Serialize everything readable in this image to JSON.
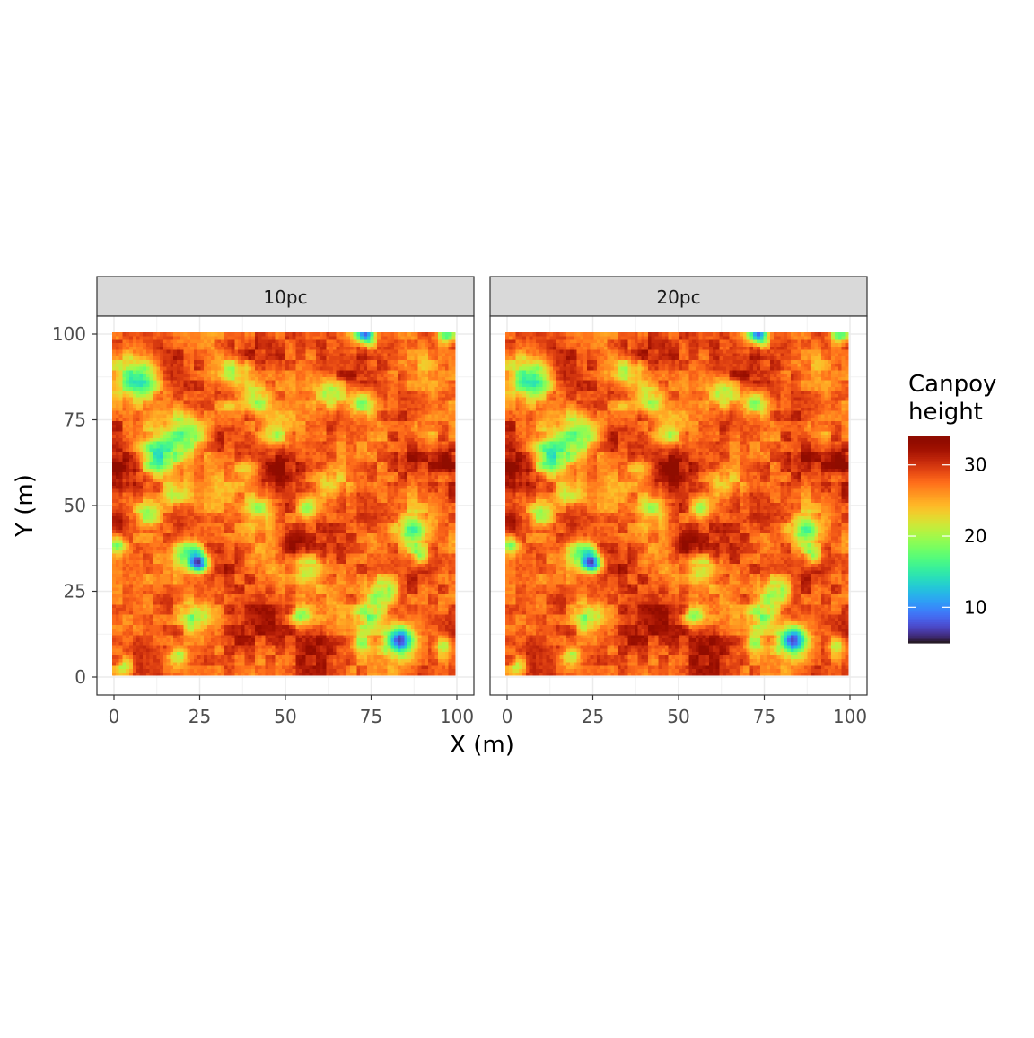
{
  "chart_data": {
    "type": "heatmap",
    "facets": [
      "10pc",
      "20pc"
    ],
    "xlabel": "X (m)",
    "ylabel": "Y (m)",
    "xlim": [
      0,
      100
    ],
    "ylim": [
      0,
      100
    ],
    "x_ticks": [
      0,
      25,
      50,
      75,
      100
    ],
    "y_ticks": [
      0,
      25,
      50,
      75,
      100
    ],
    "x_tick_labels": [
      "0",
      "25",
      "50",
      "75",
      "100"
    ],
    "y_tick_labels": [
      "0",
      "25",
      "50",
      "75",
      "100"
    ],
    "grid": true,
    "legend": {
      "title_line1": "Canpoy",
      "title_line2": "height",
      "position": "right",
      "range": [
        5,
        34
      ],
      "breaks": [
        10,
        20,
        30
      ],
      "break_labels": [
        "10",
        "20",
        "30"
      ],
      "colormap": "turbo"
    },
    "surface": {
      "baseline_height": 28,
      "gaps": [
        {
          "x": 8,
          "y": 87,
          "r": 4,
          "depth": 13
        },
        {
          "x": 22,
          "y": 71,
          "r": 4,
          "depth": 9
        },
        {
          "x": 13,
          "y": 64,
          "r": 4,
          "depth": 12
        },
        {
          "x": 10,
          "y": 47,
          "r": 3,
          "depth": 10
        },
        {
          "x": 18,
          "y": 53,
          "r": 3,
          "depth": 8
        },
        {
          "x": 25,
          "y": 33,
          "r": 2,
          "depth": 20
        },
        {
          "x": 22,
          "y": 36,
          "r": 3,
          "depth": 10
        },
        {
          "x": 24,
          "y": 17,
          "r": 3,
          "depth": 9
        },
        {
          "x": 19,
          "y": 5,
          "r": 2,
          "depth": 9
        },
        {
          "x": 43,
          "y": 49,
          "r": 3,
          "depth": 8
        },
        {
          "x": 40,
          "y": 60,
          "r": 3,
          "depth": 7
        },
        {
          "x": 47,
          "y": 70,
          "r": 3,
          "depth": 7
        },
        {
          "x": 42,
          "y": 81,
          "r": 3,
          "depth": 8
        },
        {
          "x": 36,
          "y": 89,
          "r": 3,
          "depth": 7
        },
        {
          "x": 64,
          "y": 83,
          "r": 3,
          "depth": 8
        },
        {
          "x": 73,
          "y": 80,
          "r": 3,
          "depth": 9
        },
        {
          "x": 57,
          "y": 49,
          "r": 2,
          "depth": 9
        },
        {
          "x": 58,
          "y": 31,
          "r": 3,
          "depth": 8
        },
        {
          "x": 75,
          "y": 17,
          "r": 3,
          "depth": 10
        },
        {
          "x": 79,
          "y": 24,
          "r": 3,
          "depth": 11
        },
        {
          "x": 84,
          "y": 10,
          "r": 3,
          "depth": 20
        },
        {
          "x": 88,
          "y": 42,
          "r": 3,
          "depth": 13
        },
        {
          "x": 90,
          "y": 35,
          "r": 2,
          "depth": 9
        },
        {
          "x": 55,
          "y": 17,
          "r": 2,
          "depth": 10
        },
        {
          "x": 73,
          "y": 9,
          "r": 2,
          "depth": 8
        },
        {
          "x": 98,
          "y": 100,
          "r": 2,
          "depth": 11
        },
        {
          "x": 74,
          "y": 100,
          "r": 2,
          "depth": 20
        },
        {
          "x": 1,
          "y": 38,
          "r": 2,
          "depth": 9
        },
        {
          "x": 3,
          "y": 2,
          "r": 2,
          "depth": 8
        },
        {
          "x": 97,
          "y": 8,
          "r": 2,
          "depth": 9
        },
        {
          "x": 33,
          "y": 77,
          "r": 3,
          "depth": 5
        },
        {
          "x": 64,
          "y": 56,
          "r": 3,
          "depth": 5
        },
        {
          "x": 92,
          "y": 72,
          "r": 3,
          "depth": 6
        }
      ],
      "peaks": [
        {
          "x": 2,
          "y": 60,
          "r": 4,
          "height": 5
        },
        {
          "x": 2,
          "y": 45,
          "r": 3,
          "height": 4
        },
        {
          "x": 53,
          "y": 38,
          "r": 3,
          "height": 6
        },
        {
          "x": 46,
          "y": 62,
          "r": 5,
          "height": 4
        },
        {
          "x": 39,
          "y": 95,
          "r": 4,
          "height": 4
        },
        {
          "x": 64,
          "y": 90,
          "r": 4,
          "height": 3
        },
        {
          "x": 35,
          "y": 12,
          "r": 5,
          "height": 3
        },
        {
          "x": 88,
          "y": 60,
          "r": 4,
          "height": 3
        },
        {
          "x": 98,
          "y": 63,
          "r": 2,
          "height": 5
        },
        {
          "x": 60,
          "y": 10,
          "r": 5,
          "height": 3
        }
      ]
    }
  }
}
